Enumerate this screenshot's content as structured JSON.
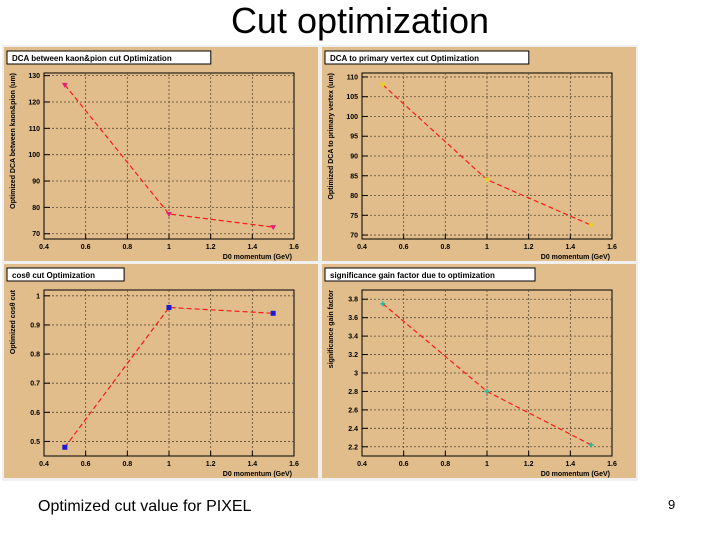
{
  "slide": {
    "title": "Cut optimization",
    "caption": "Optimized cut value for PIXEL",
    "page_number": "9"
  },
  "colors": {
    "panel_bg": "#e1bd8b",
    "plot_bg": "#e1bd8b",
    "grid": "#5a4a36",
    "axis": "#000000",
    "line": "#ff1a1a"
  },
  "chart_data": [
    {
      "type": "line",
      "title": "DCA between kaon&pion cut Optimization",
      "xlabel": "D0 momentum (GeV)",
      "ylabel": "Optimized DCA between kaon&pion  (um)",
      "xlim": [
        0.4,
        1.6
      ],
      "ylim": [
        68,
        131
      ],
      "xticks": [
        "0.4",
        "0.6",
        "0.8",
        "1",
        "1.2",
        "1.4",
        "1.6"
      ],
      "yticks": [
        "70",
        "80",
        "90",
        "100",
        "110",
        "120",
        "130"
      ],
      "x": [
        0.5,
        1.0,
        1.5
      ],
      "y": [
        126.5,
        77.5,
        72.5
      ],
      "marker": "triangle",
      "marker_color": "#e0207a"
    },
    {
      "type": "line",
      "title": "DCA to primary vertex cut Optimization",
      "xlabel": "D0 momentum (GeV)",
      "ylabel": "Optimized DCA to primary vertex  (um)",
      "xlim": [
        0.4,
        1.6
      ],
      "ylim": [
        69,
        111
      ],
      "xticks": [
        "0.4",
        "0.6",
        "0.8",
        "1",
        "1.2",
        "1.4",
        "1.6"
      ],
      "yticks": [
        "70",
        "75",
        "80",
        "85",
        "90",
        "95",
        "100",
        "105",
        "110"
      ],
      "x": [
        0.5,
        1.0,
        1.5
      ],
      "y": [
        108,
        84,
        72.5
      ],
      "marker": "triangle",
      "marker_color": "#e8d21a"
    },
    {
      "type": "line",
      "title": "cosθ cut Optimization",
      "xlabel": "D0 momentum (GeV)",
      "ylabel": "Optimized cosθ cut",
      "xlim": [
        0.4,
        1.6
      ],
      "ylim": [
        0.45,
        1.02
      ],
      "xticks": [
        "0.4",
        "0.6",
        "0.8",
        "1",
        "1.2",
        "1.4",
        "1.6"
      ],
      "yticks": [
        "0.5",
        "0.6",
        "0.7",
        "0.8",
        "0.9",
        "1"
      ],
      "x": [
        0.5,
        1.0,
        1.5
      ],
      "y": [
        0.48,
        0.96,
        0.94
      ],
      "marker": "square",
      "marker_color": "#1a1ad6"
    },
    {
      "type": "line",
      "title": "significance gain factor due to optimization",
      "xlabel": "D0 momentum (GeV)",
      "ylabel": "significance gain factor",
      "xlim": [
        0.4,
        1.6
      ],
      "ylim": [
        2.1,
        3.9
      ],
      "xticks": [
        "0.4",
        "0.6",
        "0.8",
        "1",
        "1.2",
        "1.4",
        "1.6"
      ],
      "yticks": [
        "2.2",
        "2.4",
        "2.6",
        "2.8",
        "3",
        "3.2",
        "3.4",
        "3.6",
        "3.8"
      ],
      "x": [
        0.5,
        1.0,
        1.5
      ],
      "y": [
        3.75,
        2.8,
        2.22
      ],
      "marker": "cross",
      "marker_color": "#2ab8a0"
    }
  ]
}
